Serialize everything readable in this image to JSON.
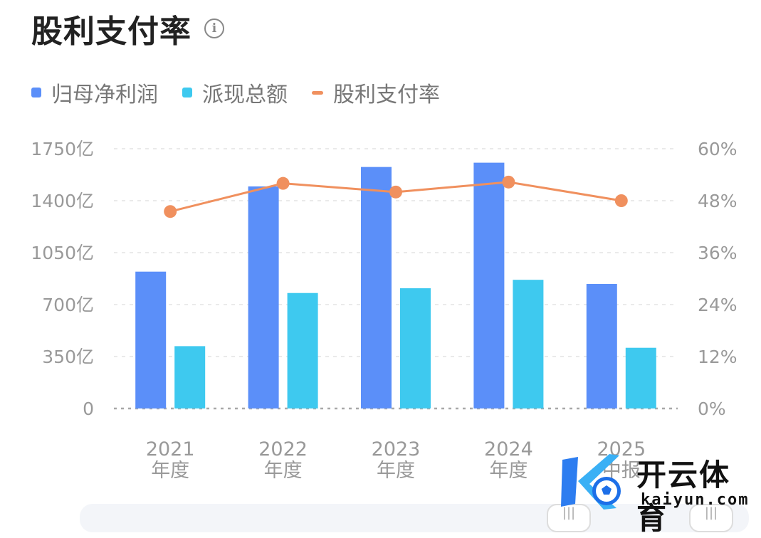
{
  "header": {
    "title": "股利支付率",
    "info_icon": "info-circle-icon"
  },
  "legend": [
    {
      "label": "归母净利润",
      "color": "#5b8ff9",
      "shape": "square"
    },
    {
      "label": "派现总额",
      "color": "#3ec9ef",
      "shape": "square"
    },
    {
      "label": "股利支付率",
      "color": "#f0905e",
      "shape": "line"
    }
  ],
  "chart_data": {
    "type": "bar",
    "categories": [
      "2021\n年度",
      "2022\n年度",
      "2023\n年度",
      "2024\n年度",
      "2025\n中报"
    ],
    "series": [
      {
        "name": "归母净利润",
        "type": "bar",
        "axis": "left",
        "color": "#5b8ff9",
        "values": [
          922,
          1496,
          1627,
          1656,
          839
        ]
      },
      {
        "name": "派现总额",
        "type": "bar",
        "axis": "left",
        "color": "#3ec9ef",
        "values": [
          420,
          778,
          810,
          867,
          409
        ]
      },
      {
        "name": "股利支付率",
        "type": "line",
        "axis": "right",
        "color": "#f0905e",
        "values": [
          45.5,
          52.0,
          50.0,
          52.3,
          48.0
        ]
      }
    ],
    "y_left": {
      "ticks": [
        "0",
        "350亿",
        "700亿",
        "1050亿",
        "1400亿",
        "1750亿"
      ],
      "lim": [
        0,
        1750
      ]
    },
    "y_right": {
      "ticks": [
        "0%",
        "12%",
        "24%",
        "36%",
        "48%",
        "60%"
      ],
      "lim": [
        0,
        60
      ]
    },
    "grid": true
  },
  "watermark": {
    "title": "开云体育",
    "url": "kaiyun.com"
  }
}
